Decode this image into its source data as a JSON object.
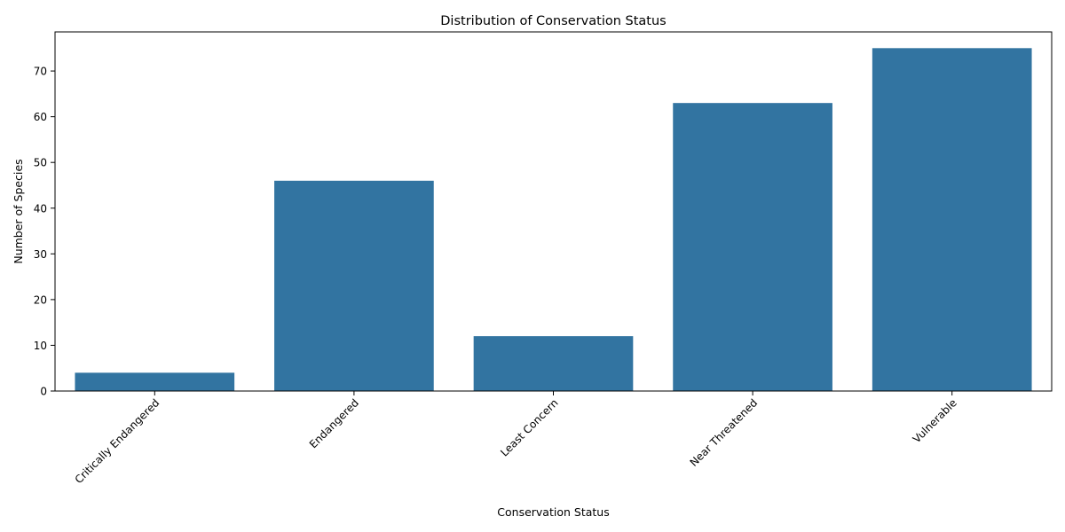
{
  "chart_data": {
    "type": "bar",
    "title": "Distribution of Conservation Status",
    "xlabel": "Conservation Status",
    "ylabel": "Number of Species",
    "categories": [
      "Critically Endangered",
      "Endangered",
      "Least Concern",
      "Near Threatened",
      "Vulnerable"
    ],
    "values": [
      4,
      46,
      12,
      63,
      75
    ],
    "ylim": [
      0,
      78.55
    ],
    "yticks": [
      0,
      10,
      20,
      30,
      40,
      50,
      60,
      70
    ],
    "grid": false,
    "bar_color": "#3274a1",
    "xtick_rotation_deg": 45
  }
}
